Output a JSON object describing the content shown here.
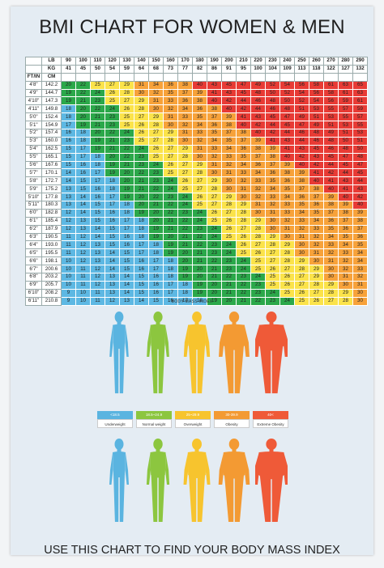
{
  "title": "BMI CHART FOR WOMEN & MEN",
  "mass_label": "BODY MASS INDEX",
  "footer": "USE THIS CHART TO FIND YOUR BODY MASS INDEX",
  "chart_data": {
    "type": "heatmap",
    "title": "BMI CHART FOR WOMEN & MEN",
    "col_header_labels": [
      "LB",
      "KG"
    ],
    "row_header_labels": [
      "FT/IN",
      "CM"
    ],
    "weights_lb": [
      90,
      100,
      110,
      120,
      130,
      140,
      150,
      160,
      170,
      180,
      190,
      200,
      210,
      220,
      230,
      240,
      250,
      260,
      270,
      280,
      290
    ],
    "weights_kg": [
      41,
      45,
      50,
      54,
      59,
      64,
      68,
      73,
      77,
      82,
      86,
      91,
      95,
      100,
      104,
      109,
      113,
      118,
      122,
      127,
      132
    ],
    "heights_ftin": [
      "4'8\"",
      "4'9\"",
      "4'10\"",
      "4'11\"",
      "5'0\"",
      "5'1\"",
      "5'2\"",
      "5'3\"",
      "5'4\"",
      "5'5\"",
      "5'6\"",
      "5'7\"",
      "5'8\"",
      "5'9\"",
      "5'10\"",
      "5'11\"",
      "6'0\"",
      "6'1\"",
      "6'2\"",
      "6'3\"",
      "6'4\"",
      "6'5\"",
      "6'6\"",
      "6'7\"",
      "6'8\"",
      "6'9\"",
      "6'10\"",
      "6'11\""
    ],
    "heights_cm": [
      "142.2",
      "144.7",
      "147.3",
      "149.8",
      "152.4",
      "154.9",
      "157.4",
      "160.0",
      "162.5",
      "165.1",
      "167.6",
      "170.1",
      "172.7",
      "175.2",
      "177.8",
      "180.3",
      "182.8",
      "185.4",
      "187.9",
      "190.5",
      "193.0",
      "195.5",
      "198.1",
      "200.6",
      "203.2",
      "205.7",
      "208.2",
      "210.8"
    ],
    "bmi_values": [
      [
        20,
        22,
        25,
        27,
        29,
        31,
        34,
        36,
        38,
        40,
        43,
        45,
        47,
        49,
        52,
        54,
        56,
        58,
        61,
        63,
        65
      ],
      [
        19,
        22,
        24,
        26,
        28,
        30,
        32,
        35,
        37,
        39,
        41,
        43,
        45,
        48,
        50,
        52,
        54,
        56,
        58,
        61,
        63
      ],
      [
        19,
        21,
        23,
        25,
        27,
        29,
        31,
        33,
        36,
        38,
        40,
        42,
        44,
        46,
        48,
        50,
        52,
        54,
        56,
        59,
        61
      ],
      [
        18,
        20,
        22,
        24,
        26,
        28,
        30,
        32,
        34,
        36,
        38,
        40,
        42,
        44,
        46,
        48,
        51,
        53,
        55,
        57,
        59
      ],
      [
        18,
        20,
        21,
        23,
        25,
        27,
        29,
        31,
        33,
        35,
        37,
        39,
        41,
        43,
        45,
        47,
        49,
        51,
        53,
        55,
        57
      ],
      [
        17,
        19,
        21,
        23,
        25,
        26,
        28,
        30,
        32,
        34,
        36,
        38,
        40,
        42,
        44,
        45,
        47,
        49,
        51,
        53,
        55
      ],
      [
        16,
        18,
        20,
        22,
        24,
        26,
        27,
        29,
        31,
        33,
        35,
        37,
        38,
        40,
        42,
        44,
        46,
        48,
        49,
        51,
        53
      ],
      [
        16,
        18,
        19,
        21,
        23,
        25,
        27,
        28,
        30,
        32,
        34,
        35,
        37,
        39,
        41,
        43,
        44,
        46,
        48,
        50,
        51
      ],
      [
        15,
        17,
        19,
        21,
        22,
        24,
        26,
        27,
        29,
        31,
        33,
        34,
        36,
        38,
        39,
        41,
        43,
        45,
        46,
        48,
        50
      ],
      [
        15,
        17,
        18,
        20,
        22,
        23,
        25,
        27,
        28,
        30,
        32,
        33,
        35,
        37,
        38,
        40,
        42,
        43,
        45,
        47,
        48
      ],
      [
        15,
        16,
        18,
        19,
        21,
        23,
        24,
        26,
        27,
        29,
        31,
        32,
        34,
        36,
        37,
        39,
        40,
        42,
        44,
        45,
        47
      ],
      [
        14,
        16,
        17,
        19,
        20,
        22,
        23,
        25,
        27,
        28,
        30,
        31,
        33,
        34,
        36,
        38,
        39,
        41,
        42,
        44,
        45
      ],
      [
        14,
        15,
        17,
        18,
        20,
        21,
        23,
        24,
        26,
        27,
        29,
        30,
        32,
        33,
        35,
        36,
        38,
        40,
        41,
        43,
        44
      ],
      [
        13,
        15,
        16,
        18,
        19,
        21,
        22,
        24,
        25,
        27,
        28,
        30,
        31,
        32,
        34,
        35,
        37,
        38,
        40,
        41,
        43
      ],
      [
        13,
        14,
        16,
        17,
        19,
        20,
        22,
        23,
        24,
        26,
        27,
        29,
        30,
        32,
        33,
        34,
        36,
        37,
        39,
        40,
        42
      ],
      [
        13,
        14,
        15,
        17,
        18,
        20,
        21,
        22,
        24,
        25,
        27,
        28,
        29,
        31,
        32,
        33,
        35,
        36,
        38,
        39,
        40
      ],
      [
        12,
        14,
        15,
        16,
        18,
        19,
        20,
        22,
        23,
        24,
        26,
        27,
        28,
        30,
        31,
        33,
        34,
        35,
        37,
        38,
        39
      ],
      [
        12,
        13,
        15,
        16,
        17,
        18,
        20,
        21,
        22,
        24,
        25,
        26,
        28,
        29,
        30,
        32,
        33,
        34,
        36,
        37,
        38
      ],
      [
        12,
        13,
        14,
        15,
        17,
        18,
        19,
        21,
        22,
        23,
        24,
        26,
        27,
        28,
        30,
        31,
        32,
        33,
        35,
        36,
        37
      ],
      [
        11,
        12,
        14,
        15,
        16,
        18,
        19,
        20,
        21,
        22,
        24,
        25,
        26,
        28,
        29,
        30,
        31,
        32,
        34,
        35,
        36
      ],
      [
        11,
        12,
        13,
        15,
        16,
        17,
        18,
        19,
        21,
        22,
        23,
        24,
        26,
        27,
        28,
        29,
        30,
        32,
        33,
        34,
        35
      ],
      [
        11,
        12,
        13,
        14,
        15,
        17,
        18,
        19,
        20,
        21,
        23,
        24,
        25,
        26,
        27,
        28,
        30,
        31,
        32,
        33,
        34
      ],
      [
        10,
        12,
        13,
        14,
        15,
        16,
        17,
        18,
        20,
        21,
        22,
        23,
        24,
        25,
        27,
        28,
        29,
        30,
        31,
        32,
        34
      ],
      [
        10,
        11,
        12,
        14,
        15,
        16,
        17,
        18,
        19,
        20,
        21,
        23,
        24,
        25,
        26,
        27,
        28,
        29,
        30,
        32,
        33
      ],
      [
        10,
        11,
        12,
        13,
        14,
        15,
        16,
        18,
        19,
        20,
        21,
        22,
        23,
        24,
        25,
        26,
        27,
        29,
        30,
        31,
        32
      ],
      [
        10,
        11,
        12,
        13,
        14,
        15,
        16,
        17,
        18,
        19,
        20,
        21,
        22,
        23,
        25,
        26,
        27,
        28,
        29,
        30,
        31
      ],
      [
        9,
        10,
        11,
        13,
        14,
        15,
        16,
        17,
        18,
        19,
        20,
        21,
        22,
        23,
        24,
        25,
        26,
        27,
        28,
        29,
        30
      ],
      [
        9,
        10,
        11,
        12,
        13,
        14,
        15,
        16,
        17,
        18,
        19,
        20,
        21,
        22,
        23,
        24,
        25,
        26,
        27,
        28,
        30
      ]
    ],
    "categories": [
      {
        "range": "<18.5",
        "label": "Underweight",
        "color": "#5ab4e0"
      },
      {
        "range": "18.5~24.9",
        "label": "Normal weight",
        "color": "#8cc63f"
      },
      {
        "range": "25~29.9",
        "label": "Overweight",
        "color": "#f7c42e"
      },
      {
        "range": "30-39.9",
        "label": "Obesity",
        "color": "#f39a33"
      },
      {
        "range": "40<",
        "label": "Extreme Obesity",
        "color": "#ef5a38"
      }
    ]
  },
  "cell_colors": {
    "underweight": "#5db8e3",
    "normal": "#2ba84a",
    "overweight": "#fbe34a",
    "obesity": "#f7a23a",
    "extreme": "#e83b35"
  }
}
